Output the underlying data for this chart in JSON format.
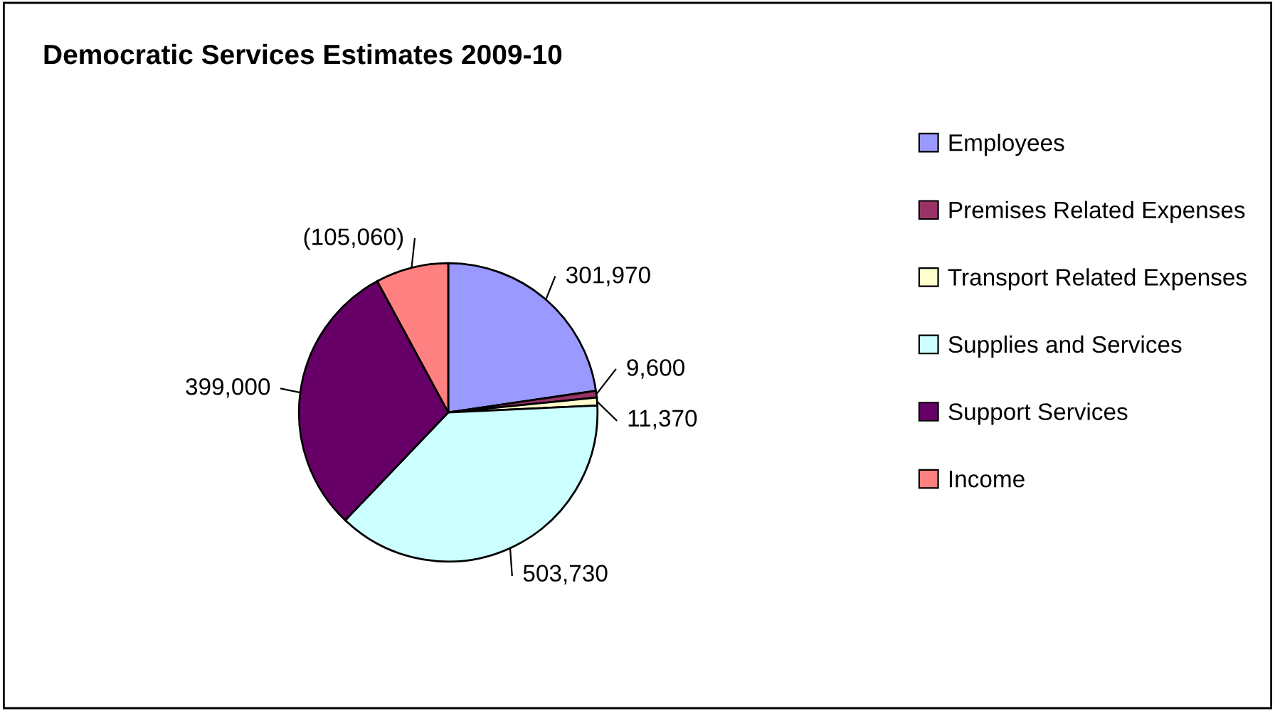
{
  "chart_data": {
    "type": "pie",
    "title": "Democratic Services Estimates 2009-10",
    "categories": [
      "Employees",
      "Premises Related Expenses",
      "Transport Related Expenses",
      "Supplies and Services",
      "Support Services",
      "Income"
    ],
    "values": [
      301970,
      9600,
      11370,
      503730,
      399000,
      105060
    ],
    "value_labels": [
      "301,970",
      "9,600",
      "11,370",
      "503,730",
      "399,000",
      "(105,060)"
    ],
    "colors": [
      "#9999ff",
      "#993366",
      "#ffffcc",
      "#ccffff",
      "#660066",
      "#ff8080"
    ],
    "legend": "right"
  }
}
